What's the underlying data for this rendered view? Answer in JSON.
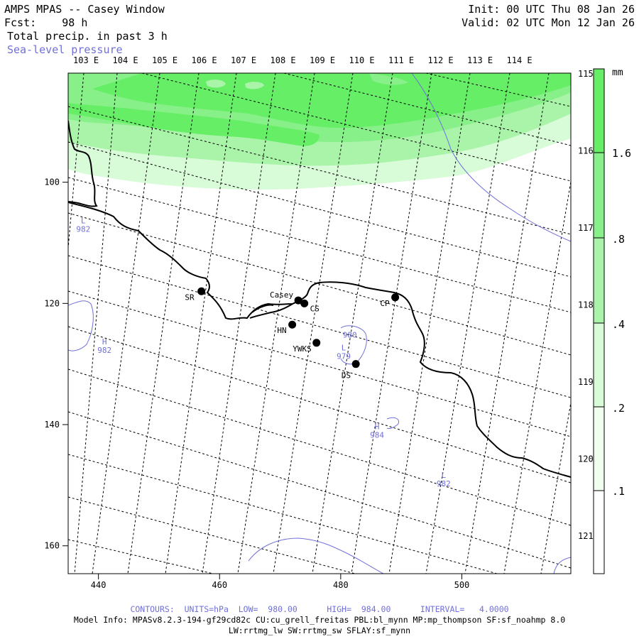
{
  "header": {
    "title": "AMPS MPAS -- Casey Window",
    "fcst_label": "Fcst:",
    "fcst_value": "98 h",
    "field_name": "Total precip. in past 3 h",
    "overlay_name": "Sea-level pressure",
    "init": "Init: 00 UTC Thu 08 Jan 26",
    "valid": "Valid: 02 UTC Mon 12 Jan 26"
  },
  "colors": {
    "shade_darkest": "#66ee66",
    "shade_dark": "#88f088",
    "shade_mid": "#aaf4aa",
    "shade_light": "#d8fbd8",
    "contour": "#7070d8",
    "coast": "#000000"
  },
  "map": {
    "top_lon_labels": [
      "103 E",
      "104 E",
      "105 E",
      "106 E",
      "107 E",
      "108 E",
      "109 E",
      "110 E",
      "111 E",
      "112 E",
      "113 E",
      "114 E"
    ],
    "right_lon_labels": [
      "115 E",
      "116 E",
      "117 E",
      "118 E",
      "119 E",
      "120 E",
      "121 E"
    ],
    "x_ticks": [
      "440",
      "460",
      "480",
      "500"
    ],
    "y_ticks": [
      "100",
      "120",
      "140",
      "160"
    ],
    "stations": [
      {
        "name": "SR",
        "x": 457,
        "y": 118
      },
      {
        "name": "Casey",
        "x": 473,
        "y": 119.5
      },
      {
        "name": "CS",
        "x": 474,
        "y": 120
      },
      {
        "name": "CP",
        "x": 489,
        "y": 119
      },
      {
        "name": "HN",
        "x": 472,
        "y": 123.5
      },
      {
        "name": "YWKS",
        "x": 476,
        "y": 126.5
      },
      {
        "name": "DS",
        "x": 482.5,
        "y": 130
      }
    ],
    "pressure_labels": [
      {
        "kind": "L",
        "value": "982",
        "x": 437.5,
        "y": 107
      },
      {
        "kind": "H",
        "value": "982",
        "x": 441,
        "y": 127
      },
      {
        "kind": "",
        "value": "980",
        "x": 481.5,
        "y": 124.5
      },
      {
        "kind": "L",
        "value": "979",
        "x": 480.5,
        "y": 128
      },
      {
        "kind": "H",
        "value": "984",
        "x": 486,
        "y": 141
      },
      {
        "kind": "L",
        "value": "982",
        "x": 497,
        "y": 149
      }
    ]
  },
  "colorbar": {
    "unit": "mm",
    "labels": [
      "1.6",
      ".8",
      ".4",
      ".2",
      ".1"
    ],
    "levels": [
      0.1,
      0.2,
      0.4,
      0.8,
      1.6
    ]
  },
  "footer": {
    "contours": "CONTOURS:  UNITS=hPa  LOW=  980.00      HIGH=  984.00      INTERVAL=   4.0000",
    "model_info": "Model Info: MPASv8.2.3-194-gf29cd82c CU:cu_grell_freitas PBL:bl_mynn MP:mp_thompson SF:sf_noahmp 8.0",
    "model_info2": "LW:rrtmg_lw SW:rrtmg_sw SFLAY:sf_mynn"
  }
}
